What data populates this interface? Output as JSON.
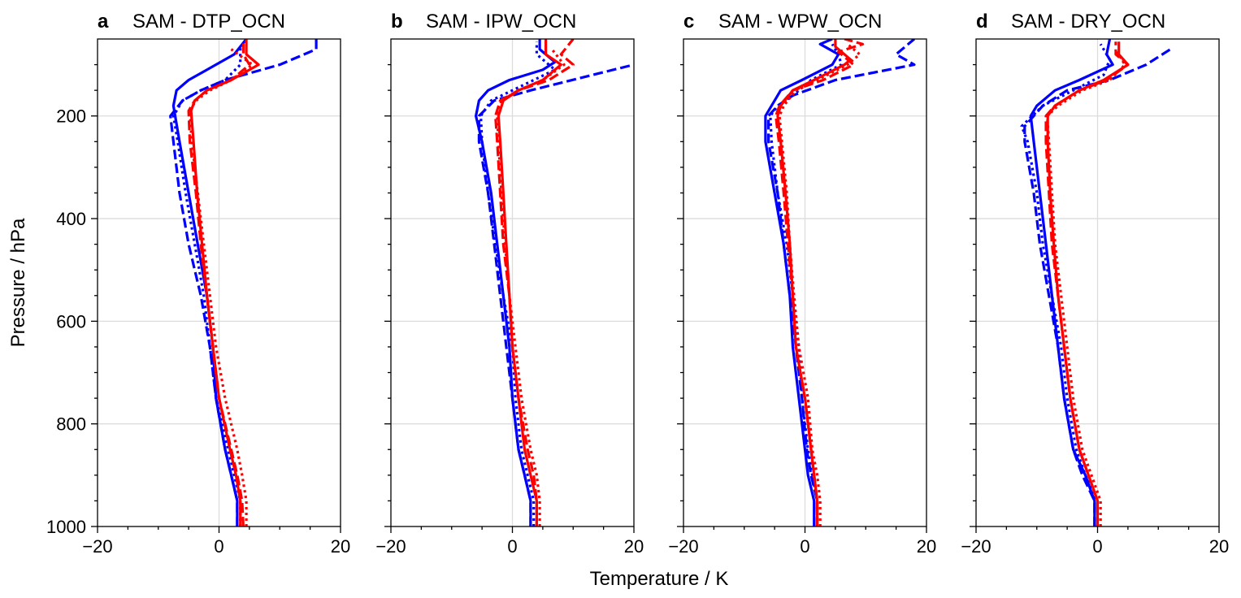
{
  "figure": {
    "ylabel": "Pressure / hPa",
    "xlabel": "Temperature / K",
    "colors": {
      "blue": "#0000ff",
      "red": "#ff0000",
      "grid": "#dcdcdc",
      "frame": "#000000"
    }
  },
  "chart_data": [
    {
      "type": "line",
      "letter": "a",
      "title": "SAM - DTP_OCN",
      "xlim": [
        -20,
        20
      ],
      "ylim": [
        1000,
        50
      ],
      "xticks": [
        -20,
        0,
        20
      ],
      "yticks": [
        200,
        400,
        600,
        800,
        1000
      ],
      "series": [
        {
          "name": "blue solid",
          "color": "blue",
          "style": "solid",
          "x": [
            3,
            3,
            2,
            1,
            -0.5,
            -1,
            -2,
            -3.5,
            -5,
            -6.5,
            -7.5,
            -7,
            -5,
            -2,
            2.5,
            4.5
          ],
          "p": [
            1000,
            950,
            900,
            850,
            750,
            650,
            550,
            450,
            350,
            250,
            180,
            150,
            130,
            110,
            80,
            50
          ]
        },
        {
          "name": "blue dashed",
          "color": "blue",
          "style": "dashed",
          "x": [
            3,
            3,
            2,
            1,
            -0.5,
            -1.5,
            -3,
            -5,
            -6.5,
            -7.5,
            -8,
            -6,
            -3,
            1,
            10,
            16,
            16
          ],
          "p": [
            1000,
            950,
            900,
            850,
            750,
            650,
            550,
            450,
            350,
            250,
            200,
            170,
            150,
            130,
            100,
            70,
            50
          ]
        },
        {
          "name": "blue dotted",
          "color": "blue",
          "style": "dotted",
          "x": [
            3.5,
            3.5,
            2.5,
            1.5,
            -0.5,
            -1.5,
            -2.5,
            -4,
            -5.5,
            -6.8,
            -7.5,
            -6,
            -3,
            1,
            3.5,
            3.5
          ],
          "p": [
            1000,
            950,
            900,
            850,
            750,
            650,
            550,
            450,
            350,
            250,
            200,
            170,
            150,
            130,
            100,
            65
          ]
        },
        {
          "name": "red solid",
          "color": "red",
          "style": "solid",
          "x": [
            3.5,
            3.5,
            2.8,
            1.8,
            0,
            -1,
            -2,
            -2.8,
            -3.6,
            -4.2,
            -4.6,
            -4,
            -2,
            2,
            6.5,
            4.5,
            4.5
          ],
          "p": [
            1000,
            950,
            900,
            850,
            750,
            650,
            550,
            450,
            350,
            250,
            190,
            170,
            150,
            130,
            100,
            80,
            50
          ]
        },
        {
          "name": "red dashed",
          "color": "red",
          "style": "dashed",
          "x": [
            4,
            3.8,
            3,
            2,
            0,
            -1,
            -2,
            -3,
            -3.8,
            -4.8,
            -5,
            -4,
            -2,
            2,
            5,
            4,
            4
          ],
          "p": [
            1000,
            950,
            900,
            850,
            750,
            650,
            550,
            450,
            350,
            250,
            190,
            170,
            150,
            130,
            100,
            80,
            55
          ]
        },
        {
          "name": "red dotted",
          "color": "red",
          "style": "dotted",
          "x": [
            4.5,
            4.5,
            3.8,
            3,
            1,
            -0.5,
            -1.5,
            -2.5,
            -3.5,
            -4.5,
            -4.8,
            -3.8,
            -1.5,
            2,
            5.5,
            2
          ],
          "p": [
            1000,
            950,
            900,
            850,
            750,
            650,
            550,
            450,
            350,
            250,
            190,
            170,
            150,
            130,
            100,
            70
          ]
        }
      ]
    },
    {
      "type": "line",
      "letter": "b",
      "title": "SAM - IPW_OCN",
      "xlim": [
        -20,
        20
      ],
      "ylim": [
        1000,
        50
      ],
      "xticks": [
        -20,
        0,
        20
      ],
      "yticks": [
        200,
        400,
        600,
        800,
        1000
      ],
      "series": [
        {
          "name": "blue solid",
          "color": "blue",
          "style": "solid",
          "x": [
            3,
            3,
            2,
            1,
            0,
            -0.5,
            -1.5,
            -2.5,
            -3.5,
            -5,
            -6,
            -5.5,
            -4,
            -0.5,
            5,
            7,
            4.5,
            4.5
          ],
          "p": [
            1000,
            950,
            900,
            850,
            750,
            650,
            550,
            450,
            350,
            250,
            200,
            170,
            150,
            130,
            110,
            95,
            70,
            50
          ]
        },
        {
          "name": "blue dashed",
          "color": "blue",
          "style": "dashed",
          "x": [
            3,
            3,
            2,
            1,
            0,
            -1,
            -2,
            -3,
            -4,
            -5.5,
            -5.5,
            -3,
            3,
            20
          ],
          "p": [
            1000,
            950,
            900,
            850,
            750,
            650,
            550,
            450,
            350,
            250,
            200,
            170,
            150,
            100
          ]
        },
        {
          "name": "blue dotted",
          "color": "blue",
          "style": "dotted",
          "x": [
            3.5,
            3.5,
            2.5,
            1.5,
            0.5,
            0,
            -1.5,
            -2.8,
            -4,
            -5,
            -5.2,
            -3.5,
            0,
            7,
            4,
            4
          ],
          "p": [
            1000,
            950,
            900,
            850,
            750,
            650,
            550,
            450,
            350,
            250,
            200,
            170,
            150,
            110,
            80,
            55
          ]
        },
        {
          "name": "red solid",
          "color": "red",
          "style": "solid",
          "x": [
            4,
            4,
            3,
            2,
            1,
            0,
            -0.5,
            -1,
            -1.5,
            -2,
            -2.3,
            -1.5,
            1,
            5,
            8,
            5.5,
            5.5
          ],
          "p": [
            1000,
            950,
            900,
            850,
            750,
            650,
            550,
            450,
            350,
            250,
            200,
            170,
            150,
            130,
            100,
            80,
            50
          ]
        },
        {
          "name": "red dashed",
          "color": "red",
          "style": "dashed",
          "x": [
            4,
            4,
            3.5,
            2.5,
            1,
            0,
            -0.5,
            -1.5,
            -2,
            -2.5,
            -2.8,
            -2,
            1,
            6,
            10,
            8,
            10
          ],
          "p": [
            1000,
            950,
            900,
            850,
            750,
            650,
            550,
            450,
            350,
            250,
            200,
            170,
            150,
            130,
            100,
            80,
            50
          ]
        },
        {
          "name": "red dotted",
          "color": "red",
          "style": "dotted",
          "x": [
            4.5,
            4.5,
            4,
            3,
            1.5,
            0.5,
            -0.5,
            -1.2,
            -1.8,
            -2.3,
            -2.5,
            -1.8,
            1,
            5,
            8.5,
            6.5
          ],
          "p": [
            1000,
            950,
            900,
            850,
            750,
            650,
            550,
            450,
            350,
            250,
            200,
            170,
            150,
            130,
            100,
            70
          ]
        }
      ]
    },
    {
      "type": "line",
      "letter": "c",
      "title": "SAM - WPW_OCN",
      "xlim": [
        -20,
        20
      ],
      "ylim": [
        1000,
        50
      ],
      "xticks": [
        -20,
        0,
        20
      ],
      "yticks": [
        200,
        400,
        600,
        800,
        1000
      ],
      "series": [
        {
          "name": "blue solid",
          "color": "blue",
          "style": "solid",
          "x": [
            1.5,
            1.5,
            0.5,
            0,
            -1,
            -2,
            -2.5,
            -3.5,
            -5,
            -6.5,
            -6.5,
            -5.5,
            -4,
            -0.5,
            4.5,
            5.5,
            2.5,
            4.5
          ],
          "p": [
            1000,
            950,
            900,
            850,
            750,
            650,
            550,
            450,
            350,
            250,
            200,
            180,
            150,
            130,
            100,
            80,
            60,
            50
          ]
        },
        {
          "name": "blue dashed",
          "color": "blue",
          "style": "dashed",
          "x": [
            2,
            2,
            1,
            0.3,
            -0.5,
            -1.5,
            -2.5,
            -3.5,
            -4.5,
            -6,
            -6,
            -4.5,
            -2,
            5,
            18,
            15,
            18
          ],
          "p": [
            1000,
            950,
            900,
            850,
            750,
            650,
            550,
            450,
            350,
            250,
            200,
            180,
            160,
            130,
            100,
            80,
            50
          ]
        },
        {
          "name": "blue dotted",
          "color": "blue",
          "style": "dotted",
          "x": [
            2,
            2,
            1.2,
            0.5,
            -0.5,
            -1,
            -2,
            -3,
            -4.5,
            -5.5,
            -5.7,
            -4.5,
            -2,
            1,
            6,
            5.5,
            4.5
          ],
          "p": [
            1000,
            950,
            900,
            850,
            750,
            650,
            550,
            450,
            350,
            250,
            200,
            180,
            160,
            130,
            100,
            80,
            60
          ]
        },
        {
          "name": "red solid",
          "color": "red",
          "style": "solid",
          "x": [
            2,
            2,
            1.5,
            1,
            0,
            -1.5,
            -2,
            -2.5,
            -3.2,
            -4,
            -4.5,
            -4,
            -2,
            1.5,
            6.5,
            7.5,
            5,
            5
          ],
          "p": [
            1000,
            950,
            900,
            850,
            750,
            650,
            550,
            450,
            350,
            250,
            200,
            180,
            150,
            130,
            100,
            90,
            65,
            50
          ]
        },
        {
          "name": "red dashed",
          "color": "red",
          "style": "dashed",
          "x": [
            2,
            2,
            1.5,
            1,
            0,
            -1.5,
            -2,
            -2.8,
            -3.5,
            -4.3,
            -4.8,
            -4.2,
            -2,
            3,
            8,
            5.5,
            9.5,
            6.5
          ],
          "p": [
            1000,
            950,
            900,
            850,
            750,
            650,
            550,
            450,
            350,
            250,
            200,
            180,
            150,
            130,
            100,
            75,
            60,
            50
          ]
        },
        {
          "name": "red dotted",
          "color": "red",
          "style": "dotted",
          "x": [
            2.5,
            2.5,
            2,
            1.2,
            0.5,
            -1,
            -1.8,
            -2.5,
            -3,
            -3.8,
            -4.2,
            -3.5,
            -1.5,
            2,
            7,
            9,
            7
          ],
          "p": [
            1000,
            950,
            900,
            850,
            750,
            650,
            550,
            450,
            350,
            250,
            200,
            180,
            150,
            130,
            100,
            80,
            60
          ]
        }
      ]
    },
    {
      "type": "line",
      "letter": "d",
      "title": "SAM - DRY_OCN",
      "xlim": [
        -20,
        20
      ],
      "ylim": [
        1000,
        50
      ],
      "xticks": [
        -20,
        0,
        20
      ],
      "yticks": [
        200,
        400,
        600,
        800,
        1000
      ],
      "series": [
        {
          "name": "blue solid",
          "color": "blue",
          "style": "solid",
          "x": [
            -0.5,
            -0.5,
            -2,
            -4,
            -5.5,
            -6.5,
            -7.5,
            -8.5,
            -9.5,
            -10.5,
            -11,
            -10,
            -7,
            -3,
            2.5,
            1.5,
            2
          ],
          "p": [
            1000,
            950,
            900,
            850,
            750,
            650,
            550,
            450,
            350,
            250,
            200,
            180,
            150,
            130,
            100,
            80,
            50
          ]
        },
        {
          "name": "blue dashed",
          "color": "blue",
          "style": "dashed",
          "x": [
            -0.5,
            -0.5,
            -2.5,
            -4,
            -5.5,
            -6.5,
            -8,
            -9.5,
            -10.5,
            -12,
            -12,
            -9,
            -5,
            2,
            8,
            12
          ],
          "p": [
            1000,
            950,
            900,
            850,
            750,
            650,
            550,
            450,
            350,
            250,
            220,
            180,
            150,
            130,
            100,
            70
          ]
        },
        {
          "name": "blue dotted",
          "color": "blue",
          "style": "dotted",
          "x": [
            0,
            0,
            -2,
            -3.5,
            -5,
            -6,
            -7.5,
            -9,
            -10,
            -11.5,
            -12.5,
            -9,
            -4,
            1,
            2,
            0.5
          ],
          "p": [
            1000,
            950,
            900,
            850,
            750,
            650,
            550,
            450,
            350,
            250,
            220,
            180,
            150,
            120,
            90,
            60
          ]
        },
        {
          "name": "red solid",
          "color": "red",
          "style": "solid",
          "x": [
            0,
            0,
            -1.5,
            -3,
            -4.5,
            -5.5,
            -6.5,
            -7.2,
            -7.8,
            -8.2,
            -8.2,
            -7,
            -3,
            1,
            5,
            3.5,
            3.5
          ],
          "p": [
            1000,
            950,
            900,
            850,
            750,
            650,
            550,
            450,
            350,
            250,
            200,
            180,
            150,
            130,
            100,
            80,
            55
          ]
        },
        {
          "name": "red dashed",
          "color": "red",
          "style": "dashed",
          "x": [
            0,
            0,
            -1.5,
            -3,
            -4.5,
            -5.5,
            -6.5,
            -7.5,
            -8,
            -8.5,
            -8.5,
            -7,
            -3,
            1.5,
            5,
            3,
            3
          ],
          "p": [
            1000,
            950,
            900,
            850,
            750,
            650,
            550,
            450,
            350,
            250,
            200,
            180,
            150,
            130,
            100,
            80,
            55
          ]
        },
        {
          "name": "red dotted",
          "color": "red",
          "style": "dotted",
          "x": [
            0.5,
            0.5,
            -1,
            -2.5,
            -4,
            -5,
            -6,
            -7,
            -7.5,
            -8,
            -8.3,
            -6.5,
            -2.5,
            2,
            4.5,
            3
          ],
          "p": [
            1000,
            950,
            900,
            850,
            750,
            650,
            550,
            450,
            350,
            250,
            200,
            180,
            150,
            130,
            100,
            70
          ]
        }
      ]
    }
  ]
}
